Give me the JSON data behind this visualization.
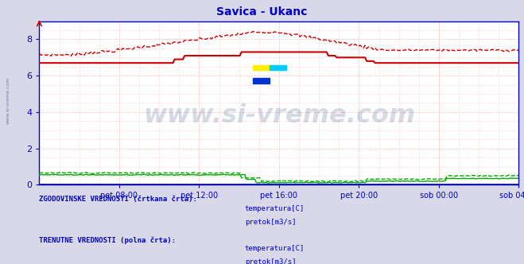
{
  "title": "Savica - Ukanc",
  "title_color": "#0000cc",
  "plot_bg_color": "#ffffff",
  "fig_bg_color": "#d8d8e8",
  "grid_color": "#ffaaaa",
  "axis_color": "#0000cc",
  "watermark_text": "www.si-vreme.com",
  "watermark_color": "#1a3a6a",
  "watermark_alpha": 0.18,
  "ylim": [
    0,
    9
  ],
  "yticks": [
    0,
    2,
    4,
    6,
    8
  ],
  "xtick_labels": [
    "pet 08:00",
    "pet 12:00",
    "pet 16:00",
    "pet 20:00",
    "sob 00:00",
    "sob 04:00"
  ],
  "n_points": 288,
  "temp_color": "#cc0000",
  "pretok_color": "#00aa00",
  "blue_color": "#0000cc",
  "legend_text_color": "#0000cc",
  "watermark_side_color": "#3a5a8a",
  "logo_yellow": "#ffee00",
  "logo_cyan": "#00ccff",
  "logo_blue": "#0033cc"
}
